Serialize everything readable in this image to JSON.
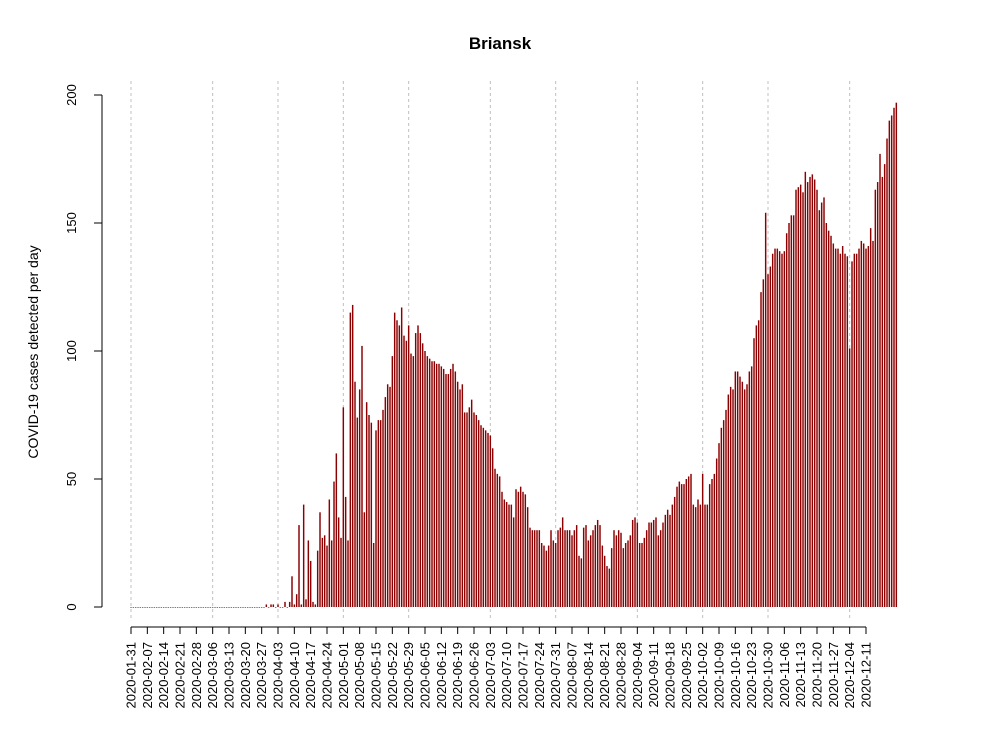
{
  "chart_data": {
    "type": "bar",
    "title": "Briansk",
    "xlabel": "",
    "ylabel": "COVID-19 cases detected per day",
    "x_start": "2020-01-31",
    "x_end": "2020-12-11",
    "ylim": [
      0,
      200
    ],
    "yticks": [
      0,
      50,
      100,
      150,
      200
    ],
    "bar_color": "#8b0000",
    "gridline_dates": [
      "2020-01-31",
      "2020-03-06",
      "2020-04-03",
      "2020-05-01",
      "2020-05-29",
      "2020-07-03",
      "2020-07-31",
      "2020-09-04",
      "2020-10-02",
      "2020-10-30",
      "2020-12-04"
    ],
    "tick_labels": [
      "2020-01-31",
      "2020-02-07",
      "2020-02-14",
      "2020-02-21",
      "2020-02-28",
      "2020-03-06",
      "2020-03-13",
      "2020-03-20",
      "2020-03-27",
      "2020-04-03",
      "2020-04-10",
      "2020-04-17",
      "2020-04-24",
      "2020-05-01",
      "2020-05-08",
      "2020-05-15",
      "2020-05-22",
      "2020-05-29",
      "2020-06-05",
      "2020-06-12",
      "2020-06-19",
      "2020-06-26",
      "2020-07-03",
      "2020-07-10",
      "2020-07-17",
      "2020-07-24",
      "2020-07-31",
      "2020-08-07",
      "2020-08-14",
      "2020-08-21",
      "2020-08-28",
      "2020-09-04",
      "2020-09-11",
      "2020-09-18",
      "2020-09-25",
      "2020-10-02",
      "2020-10-09",
      "2020-10-16",
      "2020-10-23",
      "2020-10-30",
      "2020-11-06",
      "2020-11-13",
      "2020-11-20",
      "2020-11-27",
      "2020-12-04",
      "2020-12-11"
    ],
    "values": [
      0,
      0,
      0,
      0,
      0,
      0,
      0,
      0,
      0,
      0,
      0,
      0,
      0,
      0,
      0,
      0,
      0,
      0,
      0,
      0,
      0,
      0,
      0,
      0,
      0,
      0,
      0,
      0,
      0,
      0,
      0,
      0,
      0,
      0,
      0,
      0,
      0,
      0,
      0,
      0,
      0,
      0,
      0,
      0,
      0,
      0,
      0,
      0,
      0,
      0,
      0,
      0,
      0,
      0,
      0,
      0,
      0,
      0,
      1,
      0,
      1,
      1,
      0,
      1,
      0,
      0,
      2,
      0,
      2,
      12,
      1,
      5,
      32,
      1,
      40,
      3,
      26,
      18,
      2,
      1,
      22,
      37,
      27,
      28,
      24,
      42,
      26,
      49,
      60,
      35,
      27,
      78,
      43,
      26,
      115,
      118,
      88,
      74,
      85,
      102,
      37,
      80,
      75,
      72,
      25,
      69,
      73,
      73,
      77,
      82,
      87,
      86,
      98,
      115,
      112,
      110,
      117,
      106,
      104,
      110,
      99,
      98,
      107,
      110,
      107,
      103,
      100,
      98,
      97,
      96,
      96,
      95,
      95,
      94,
      93,
      91,
      91,
      93,
      95,
      92,
      88,
      85,
      87,
      76,
      76,
      78,
      81,
      76,
      75,
      73,
      71,
      70,
      69,
      68,
      67,
      62,
      54,
      52,
      51,
      45,
      42,
      41,
      40,
      40,
      35,
      46,
      45,
      47,
      45,
      44,
      39,
      31,
      30,
      30,
      30,
      30,
      25,
      24,
      22,
      24,
      30,
      26,
      25,
      30,
      31,
      35,
      30,
      30,
      30,
      28,
      30,
      32,
      20,
      19,
      31,
      32,
      26,
      28,
      30,
      32,
      34,
      32,
      24,
      20,
      16,
      15,
      23,
      30,
      28,
      30,
      29,
      23,
      25,
      26,
      28,
      34,
      35,
      33,
      25,
      25,
      27,
      30,
      33,
      33,
      34,
      35,
      28,
      30,
      33,
      36,
      38,
      36,
      40,
      43,
      47,
      49,
      48,
      48,
      50,
      51,
      52,
      40,
      39,
      42,
      40,
      52,
      40,
      40,
      48,
      50,
      52,
      58,
      64,
      70,
      73,
      77,
      83,
      86,
      85,
      92,
      92,
      90,
      88,
      85,
      87,
      92,
      94,
      105,
      110,
      112,
      123,
      128,
      154,
      130,
      133,
      138,
      140,
      140,
      139,
      138,
      139,
      146,
      150,
      153,
      153,
      163,
      164,
      165,
      162,
      170,
      166,
      168,
      169,
      167,
      163,
      155,
      158,
      160,
      150,
      147,
      145,
      142,
      140,
      140,
      138,
      141,
      138,
      137,
      101,
      135,
      138,
      138,
      140,
      143,
      142,
      140,
      141,
      148,
      143,
      163,
      166,
      177,
      168,
      173,
      183,
      190,
      192,
      195,
      197
    ]
  }
}
